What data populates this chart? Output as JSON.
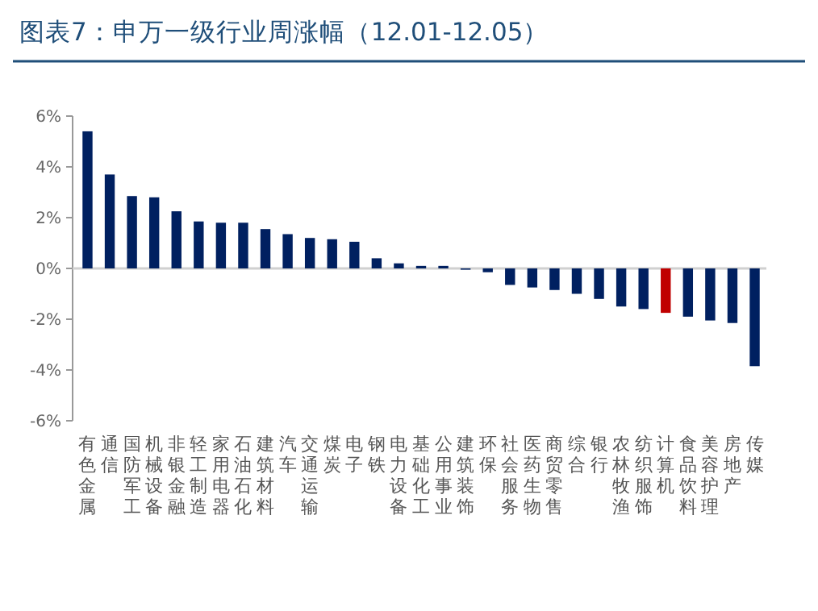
{
  "chart_data": {
    "type": "bar",
    "title": "图表7：申万一级行业周涨幅（12.01-12.05）",
    "categories": [
      "有色金属",
      "通信",
      "国防军工",
      "机械设备",
      "非银金融",
      "轻工制造",
      "家用电器",
      "石油石化",
      "建筑材料",
      "汽车",
      "交通运输",
      "煤炭",
      "电子",
      "钢铁",
      "电力设备",
      "基础化工",
      "公用事业",
      "建筑装饰",
      "环保",
      "社会服务",
      "医药生物",
      "商贸零售",
      "综合",
      "银行",
      "农林牧渔",
      "纺织服饰",
      "计算机",
      "食品饮料",
      "美容护理",
      "房地产",
      "传媒"
    ],
    "values": [
      5.4,
      3.7,
      2.85,
      2.8,
      2.25,
      1.85,
      1.8,
      1.8,
      1.55,
      1.35,
      1.2,
      1.15,
      1.05,
      0.4,
      0.2,
      0.1,
      0.1,
      -0.05,
      -0.15,
      -0.65,
      -0.75,
      -0.85,
      -1.0,
      -1.2,
      -1.5,
      -1.6,
      -1.75,
      -1.9,
      -2.05,
      -2.15,
      -3.85
    ],
    "colors": [
      "#002060",
      "#002060",
      "#002060",
      "#002060",
      "#002060",
      "#002060",
      "#002060",
      "#002060",
      "#002060",
      "#002060",
      "#002060",
      "#002060",
      "#002060",
      "#002060",
      "#002060",
      "#002060",
      "#002060",
      "#002060",
      "#002060",
      "#002060",
      "#002060",
      "#002060",
      "#002060",
      "#002060",
      "#002060",
      "#002060",
      "#c00000",
      "#002060",
      "#002060",
      "#002060",
      "#002060"
    ],
    "ylim": [
      -6,
      6
    ],
    "yticks": [
      {
        "value": -6,
        "label": "-6%"
      },
      {
        "value": -4,
        "label": "-4%"
      },
      {
        "value": -2,
        "label": "-2%"
      },
      {
        "value": 0,
        "label": "0%"
      },
      {
        "value": 2,
        "label": "2%"
      },
      {
        "value": 4,
        "label": "4%"
      },
      {
        "value": 6,
        "label": "6%"
      }
    ]
  }
}
